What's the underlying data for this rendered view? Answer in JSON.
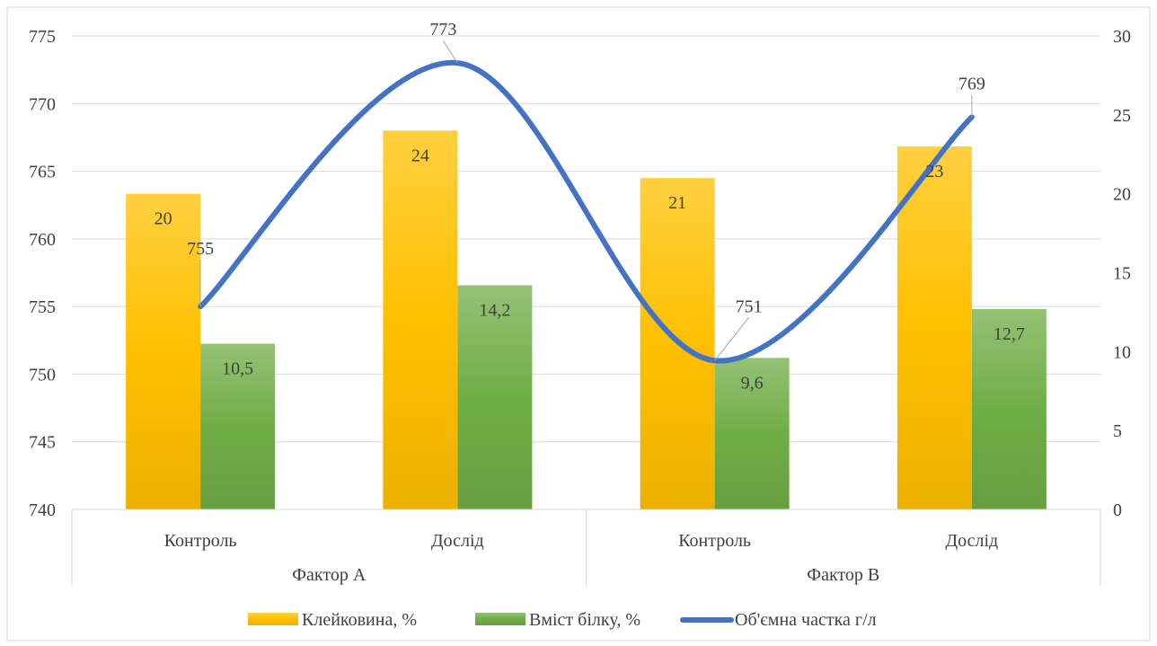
{
  "chart_data": {
    "type": "bar",
    "groups": [
      {
        "label": "Фактор А",
        "categories": [
          "Контроль",
          "Дослід"
        ]
      },
      {
        "label": "Фактор В",
        "categories": [
          "Контроль",
          "Дослід"
        ]
      }
    ],
    "categories": [
      "Контроль",
      "Дослід",
      "Контроль",
      "Дослід"
    ],
    "series": [
      {
        "name": "Клейковина, %",
        "type": "bar",
        "axis": "right",
        "values": [
          20,
          24,
          21,
          23
        ],
        "labels": [
          "20",
          "24",
          "21",
          "23"
        ],
        "color": "#FFC000"
      },
      {
        "name": "Вміст білку, %",
        "type": "bar",
        "axis": "right",
        "values": [
          10.5,
          14.2,
          9.6,
          12.7
        ],
        "labels": [
          "10,5",
          "14,2",
          "9,6",
          "12,7"
        ],
        "color": "#70AD47"
      },
      {
        "name": "Об'ємна частка г/л",
        "type": "line",
        "smooth": true,
        "axis": "left",
        "values": [
          755,
          773,
          751,
          769
        ],
        "labels": [
          "755",
          "773",
          "751",
          "769"
        ],
        "color": "#4472C4"
      }
    ],
    "y_left": {
      "min": 740,
      "max": 775,
      "step": 5,
      "ticks": [
        "740",
        "745",
        "750",
        "755",
        "760",
        "765",
        "770",
        "775"
      ]
    },
    "y_right": {
      "min": 0,
      "max": 30,
      "step": 5,
      "ticks": [
        "0",
        "5",
        "10",
        "15",
        "20",
        "25",
        "30"
      ]
    },
    "grid": true,
    "legend_position": "bottom"
  }
}
